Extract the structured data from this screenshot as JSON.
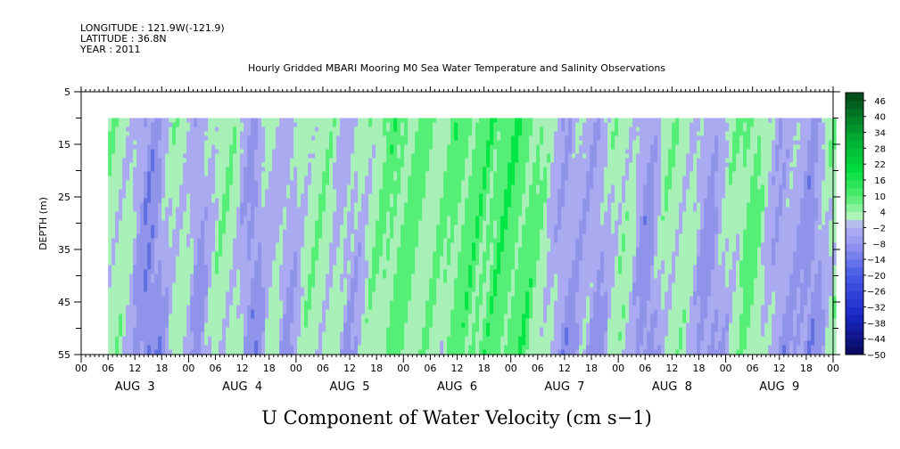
{
  "header": {
    "longitude": "LONGITUDE : 121.9W(-121.9)",
    "latitude": "LATITUDE : 36.8N",
    "year": "YEAR : 2011",
    "title": "Hourly Gridded MBARI Mooring M0 Sea Water Temperature and Salinity Observations"
  },
  "chart_data": {
    "type": "heatmap",
    "title": "Hourly Gridded MBARI Mooring M0 Sea Water Temperature and Salinity Observations",
    "xlabel": "U Component of Water Velocity (cm s−1)",
    "ylabel": "DEPTH (m)",
    "y_axis": {
      "range": [
        5,
        55
      ],
      "inverted": true,
      "ticks": [
        5,
        15,
        25,
        35,
        45,
        55
      ],
      "tick_labels": [
        "5",
        "15",
        "25",
        "35",
        "45",
        "55"
      ]
    },
    "x_axis": {
      "range_hours": [
        0,
        168
      ],
      "hour_tick_labels": [
        "00",
        "06",
        "12",
        "18",
        "00",
        "06",
        "12",
        "18",
        "00",
        "06",
        "12",
        "18",
        "00",
        "06",
        "12",
        "18",
        "00",
        "06",
        "12",
        "18",
        "00",
        "06",
        "12",
        "18",
        "00",
        "06",
        "12",
        "18",
        "00"
      ],
      "day_labels": [
        "AUG  3",
        "AUG  4",
        "AUG  5",
        "AUG  6",
        "AUG  7",
        "AUG  8",
        "AUG  9"
      ]
    },
    "data_extent": {
      "depth": [
        10,
        55
      ],
      "start_hour": 6
    },
    "colorbar": {
      "labels": [
        "46",
        "40",
        "34",
        "28",
        "22",
        "16",
        "10",
        "4",
        "−2",
        "−8",
        "−14",
        "−20",
        "−26",
        "−32",
        "−38",
        "−44",
        "−50"
      ],
      "min": -50,
      "max": 49,
      "step": 3
    },
    "colors": {
      "strong_positive": "#00e644",
      "positive": "#55ee77",
      "weak_positive": "#a8f0b8",
      "weak_negative": "#aaaaf0",
      "negative": "#8f93ea",
      "strong_negative": "#6070e0"
    },
    "pattern": "Time-varying U velocity: alternating bands of positive (green, ~4 to 16 cm/s) and negative (purple/blue, ~-2 to -14 cm/s) values spanning full depth, strongest negatives near AUG 3 12-18 and near bottom."
  }
}
